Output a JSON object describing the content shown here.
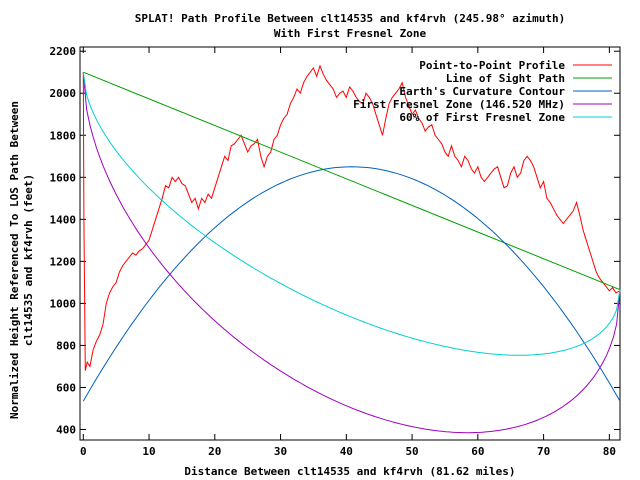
{
  "chart_data": {
    "type": "line",
    "title": "SPLAT! Path Profile Between clt14535 and kf4rvh (245.98° azimuth)",
    "subtitle": "With First Fresnel Zone",
    "xlabel": "Distance Between clt14535 and kf4rvh (81.62 miles)",
    "ylabel": "Normalized Height Referenced To LOS Path Between clt14535 and kf4rvh (feet)",
    "ylabel_line1": "Normalized Height Referenced To LOS Path Between",
    "ylabel_line2": "clt14535 and kf4rvh (feet)",
    "xlim": [
      -0.5,
      81.62
    ],
    "ylim": [
      350,
      2220
    ],
    "x_ticks": [
      0,
      10,
      20,
      30,
      40,
      50,
      60,
      70,
      80
    ],
    "y_ticks": [
      400,
      600,
      800,
      1000,
      1200,
      1400,
      1600,
      1800,
      2000,
      2200
    ],
    "legend_position": "top-right",
    "grid": false,
    "series": [
      {
        "name": "Point-to-Point Profile",
        "color": "#ff0000",
        "x": [
          0,
          0.1,
          0.3,
          0.6,
          1,
          1.5,
          2,
          2.5,
          3,
          3.5,
          4,
          4.5,
          5,
          5.5,
          6,
          6.5,
          7,
          7.5,
          8,
          8.5,
          9,
          9.5,
          10,
          10.5,
          11,
          11.5,
          12,
          12.5,
          13,
          13.5,
          14,
          14.5,
          15,
          15.5,
          16,
          16.5,
          17,
          17.5,
          18,
          18.5,
          19,
          19.5,
          20,
          20.5,
          21,
          21.5,
          22,
          22.5,
          23,
          23.5,
          24,
          24.5,
          25,
          25.5,
          26,
          26.5,
          27,
          27.5,
          28,
          28.5,
          29,
          29.5,
          30,
          30.5,
          31,
          31.5,
          32,
          32.5,
          33,
          33.5,
          34,
          34.5,
          35,
          35.5,
          36,
          36.5,
          37,
          37.5,
          38,
          38.5,
          39,
          39.5,
          40,
          40.5,
          41,
          41.5,
          42,
          42.5,
          43,
          43.5,
          44,
          44.5,
          45,
          45.5,
          46,
          46.5,
          47,
          47.5,
          48,
          48.5,
          49,
          49.5,
          50,
          50.5,
          51,
          51.5,
          52,
          52.5,
          53,
          53.5,
          54,
          54.5,
          55,
          55.5,
          56,
          56.5,
          57,
          57.5,
          58,
          58.5,
          59,
          59.5,
          60,
          60.5,
          61,
          61.5,
          62,
          62.5,
          63,
          63.5,
          64,
          64.5,
          65,
          65.5,
          66,
          66.5,
          67,
          67.5,
          68,
          68.5,
          69,
          69.5,
          70,
          70.5,
          71,
          71.5,
          72,
          72.5,
          73,
          73.5,
          74,
          74.5,
          75,
          75.5,
          76,
          76.5,
          77,
          77.5,
          78,
          78.5,
          79,
          79.5,
          80,
          80.5,
          81,
          81.62
        ],
        "values": [
          2100,
          1400,
          680,
          720,
          700,
          780,
          820,
          850,
          900,
          1000,
          1050,
          1080,
          1100,
          1150,
          1180,
          1200,
          1220,
          1240,
          1230,
          1250,
          1260,
          1280,
          1300,
          1350,
          1400,
          1450,
          1500,
          1560,
          1550,
          1600,
          1580,
          1600,
          1570,
          1560,
          1520,
          1480,
          1500,
          1450,
          1500,
          1480,
          1520,
          1500,
          1550,
          1600,
          1650,
          1700,
          1680,
          1750,
          1760,
          1780,
          1800,
          1760,
          1720,
          1750,
          1760,
          1780,
          1700,
          1650,
          1700,
          1720,
          1780,
          1800,
          1850,
          1880,
          1900,
          1950,
          1980,
          2020,
          2000,
          2050,
          2080,
          2100,
          2120,
          2080,
          2130,
          2090,
          2060,
          2040,
          2020,
          1980,
          2000,
          2010,
          1980,
          2030,
          2010,
          1980,
          1960,
          1950,
          2000,
          1980,
          1950,
          1900,
          1850,
          1800,
          1880,
          1950,
          1980,
          2000,
          2020,
          2050,
          1980,
          1940,
          1900,
          1920,
          1880,
          1860,
          1820,
          1840,
          1850,
          1800,
          1780,
          1760,
          1720,
          1700,
          1750,
          1700,
          1680,
          1650,
          1700,
          1680,
          1640,
          1620,
          1650,
          1600,
          1580,
          1600,
          1620,
          1640,
          1650,
          1600,
          1550,
          1560,
          1620,
          1650,
          1600,
          1620,
          1680,
          1700,
          1680,
          1650,
          1600,
          1550,
          1580,
          1500,
          1480,
          1450,
          1420,
          1400,
          1380,
          1400,
          1420,
          1440,
          1480,
          1420,
          1350,
          1300,
          1250,
          1200,
          1150,
          1120,
          1100,
          1080,
          1060,
          1075,
          1050,
          1060
        ]
      },
      {
        "name": "Line of Sight Path",
        "color": "#00a000",
        "x": [
          0,
          81.62
        ],
        "values": [
          2100,
          1065
        ]
      },
      {
        "name": "Earth's Curvature Contour",
        "color": "#0060c0",
        "x": [
          0,
          81.62
        ],
        "bottom_start": 535,
        "bottom_end": 535,
        "peak_y": 1650,
        "peak_x": 40.81
      },
      {
        "name": "First Fresnel Zone (146.520 MHz)",
        "color": "#a000c0",
        "x": [
          0,
          81.62
        ],
        "radius_max": 1080
      },
      {
        "name": "60% of First Fresnel Zone",
        "color": "#00d0d0",
        "x": [
          0,
          81.62
        ],
        "radius_max": 648
      }
    ]
  }
}
